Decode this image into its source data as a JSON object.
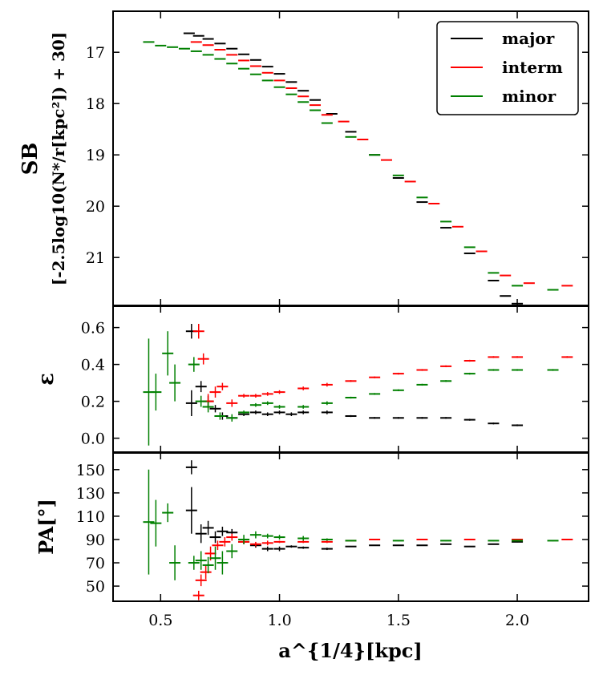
{
  "chart_data": {
    "type": "scatter",
    "x_label": "a^{1/4}[kpc]",
    "x_lim": [
      0.3,
      2.3
    ],
    "x_ticks": [
      "0.5",
      "1.0",
      "1.5",
      "2.0"
    ],
    "colors": {
      "major": "#000000",
      "interm": "#ff0000",
      "minor": "#008000"
    },
    "legend": {
      "placement": "top-right",
      "entries": [
        "major",
        "interm",
        "minor"
      ]
    },
    "panels": [
      {
        "name": "sb",
        "y_label_top": "SB",
        "y_label_bottom": "[-2.5log10(N*/r[kpc²]) + 30]",
        "y_lim": [
          21.95,
          16.2
        ],
        "y_inverted": true,
        "y_ticks": [
          "17",
          "18",
          "19",
          "20",
          "21"
        ],
        "series": [
          {
            "name": "major",
            "points": [
              [
                0.62,
                16.63
              ],
              [
                0.66,
                16.68
              ],
              [
                0.7,
                16.74
              ],
              [
                0.75,
                16.83
              ],
              [
                0.8,
                16.93
              ],
              [
                0.85,
                17.04
              ],
              [
                0.9,
                17.15
              ],
              [
                0.95,
                17.28
              ],
              [
                1.0,
                17.42
              ],
              [
                1.05,
                17.58
              ],
              [
                1.1,
                17.75
              ],
              [
                1.15,
                17.93
              ],
              [
                1.22,
                18.2
              ],
              [
                1.3,
                18.55
              ],
              [
                1.4,
                19.0
              ],
              [
                1.5,
                19.45
              ],
              [
                1.6,
                19.92
              ],
              [
                1.7,
                20.42
              ],
              [
                1.8,
                20.92
              ],
              [
                1.9,
                21.45
              ],
              [
                1.95,
                21.75
              ],
              [
                2.0,
                21.9
              ]
            ]
          },
          {
            "name": "interm",
            "points": [
              [
                0.65,
                16.8
              ],
              [
                0.7,
                16.86
              ],
              [
                0.75,
                16.95
              ],
              [
                0.8,
                17.05
              ],
              [
                0.85,
                17.16
              ],
              [
                0.9,
                17.27
              ],
              [
                0.95,
                17.4
              ],
              [
                1.0,
                17.55
              ],
              [
                1.05,
                17.7
              ],
              [
                1.1,
                17.86
              ],
              [
                1.15,
                18.03
              ],
              [
                1.2,
                18.22
              ],
              [
                1.27,
                18.35
              ],
              [
                1.35,
                18.7
              ],
              [
                1.45,
                19.1
              ],
              [
                1.55,
                19.52
              ],
              [
                1.65,
                19.95
              ],
              [
                1.75,
                20.4
              ],
              [
                1.85,
                20.88
              ],
              [
                1.95,
                21.35
              ],
              [
                2.05,
                21.5
              ],
              [
                2.21,
                21.55
              ]
            ]
          },
          {
            "name": "minor",
            "points": [
              [
                0.45,
                16.8
              ],
              [
                0.5,
                16.87
              ],
              [
                0.55,
                16.9
              ],
              [
                0.6,
                16.93
              ],
              [
                0.65,
                16.98
              ],
              [
                0.7,
                17.05
              ],
              [
                0.75,
                17.13
              ],
              [
                0.8,
                17.22
              ],
              [
                0.85,
                17.32
              ],
              [
                0.9,
                17.43
              ],
              [
                0.95,
                17.55
              ],
              [
                1.0,
                17.68
              ],
              [
                1.05,
                17.82
              ],
              [
                1.1,
                17.97
              ],
              [
                1.15,
                18.13
              ],
              [
                1.2,
                18.38
              ],
              [
                1.3,
                18.65
              ],
              [
                1.4,
                19.0
              ],
              [
                1.5,
                19.4
              ],
              [
                1.6,
                19.83
              ],
              [
                1.7,
                20.3
              ],
              [
                1.8,
                20.8
              ],
              [
                1.9,
                21.3
              ],
              [
                2.0,
                21.55
              ],
              [
                2.15,
                21.63
              ]
            ]
          }
        ]
      },
      {
        "name": "epsilon",
        "y_label": "ε",
        "y_lim": [
          -0.08,
          0.72
        ],
        "y_ticks": [
          "0.0",
          "0.2",
          "0.4",
          "0.6"
        ],
        "series": [
          {
            "name": "major",
            "points": [
              [
                0.63,
                0.58,
                0.04
              ],
              [
                0.63,
                0.19,
                0.07
              ],
              [
                0.67,
                0.28,
                0.03
              ],
              [
                0.7,
                0.2,
                0.03
              ],
              [
                0.73,
                0.16,
                0.02
              ],
              [
                0.76,
                0.12,
                0.02
              ],
              [
                0.8,
                0.11,
                0.01
              ],
              [
                0.85,
                0.13,
                0.01
              ],
              [
                0.9,
                0.14,
                0.01
              ],
              [
                0.95,
                0.13,
                0.01
              ],
              [
                1.0,
                0.14,
                0.01
              ],
              [
                1.05,
                0.13,
                0.01
              ],
              [
                1.1,
                0.14,
                0.01
              ],
              [
                1.2,
                0.14,
                0.01
              ],
              [
                1.3,
                0.12,
                0.005
              ],
              [
                1.4,
                0.11,
                0.005
              ],
              [
                1.5,
                0.11,
                0.005
              ],
              [
                1.6,
                0.11,
                0.005
              ],
              [
                1.7,
                0.11,
                0.005
              ],
              [
                1.8,
                0.1,
                0.005
              ],
              [
                1.9,
                0.08,
                0.005
              ],
              [
                2.0,
                0.07,
                0.005
              ]
            ]
          },
          {
            "name": "interm",
            "points": [
              [
                0.66,
                0.58,
                0.04
              ],
              [
                0.68,
                0.43,
                0.03
              ],
              [
                0.7,
                0.2,
                0.04
              ],
              [
                0.73,
                0.25,
                0.03
              ],
              [
                0.76,
                0.28,
                0.02
              ],
              [
                0.8,
                0.19,
                0.02
              ],
              [
                0.85,
                0.23,
                0.01
              ],
              [
                0.9,
                0.23,
                0.01
              ],
              [
                0.95,
                0.24,
                0.01
              ],
              [
                1.0,
                0.25,
                0.01
              ],
              [
                1.1,
                0.27,
                0.01
              ],
              [
                1.2,
                0.29,
                0.01
              ],
              [
                1.3,
                0.31,
                0.005
              ],
              [
                1.4,
                0.33,
                0.005
              ],
              [
                1.5,
                0.35,
                0.005
              ],
              [
                1.6,
                0.37,
                0.005
              ],
              [
                1.7,
                0.39,
                0.005
              ],
              [
                1.8,
                0.42,
                0.005
              ],
              [
                1.9,
                0.44,
                0.005
              ],
              [
                2.0,
                0.44,
                0.005
              ],
              [
                2.21,
                0.44,
                0.005
              ]
            ]
          },
          {
            "name": "minor",
            "points": [
              [
                0.45,
                0.25,
                0.29
              ],
              [
                0.48,
                0.25,
                0.1
              ],
              [
                0.53,
                0.46,
                0.12
              ],
              [
                0.56,
                0.3,
                0.1
              ],
              [
                0.64,
                0.4,
                0.04
              ],
              [
                0.67,
                0.2,
                0.03
              ],
              [
                0.7,
                0.17,
                0.03
              ],
              [
                0.75,
                0.12,
                0.02
              ],
              [
                0.8,
                0.11,
                0.02
              ],
              [
                0.85,
                0.14,
                0.01
              ],
              [
                0.9,
                0.18,
                0.01
              ],
              [
                0.95,
                0.19,
                0.01
              ],
              [
                1.0,
                0.17,
                0.01
              ],
              [
                1.1,
                0.17,
                0.01
              ],
              [
                1.2,
                0.19,
                0.01
              ],
              [
                1.3,
                0.22,
                0.005
              ],
              [
                1.4,
                0.24,
                0.005
              ],
              [
                1.5,
                0.26,
                0.005
              ],
              [
                1.6,
                0.29,
                0.005
              ],
              [
                1.7,
                0.31,
                0.005
              ],
              [
                1.8,
                0.35,
                0.005
              ],
              [
                1.9,
                0.37,
                0.005
              ],
              [
                2.0,
                0.37,
                0.005
              ],
              [
                2.15,
                0.37,
                0.005
              ]
            ]
          }
        ]
      },
      {
        "name": "pa",
        "y_label": "PA[°]",
        "y_lim": [
          37,
          165
        ],
        "y_ticks": [
          "50",
          "70",
          "90",
          "110",
          "130",
          "150"
        ],
        "series": [
          {
            "name": "major",
            "points": [
              [
                0.63,
                152,
                6
              ],
              [
                0.63,
                115,
                20
              ],
              [
                0.67,
                95,
                8
              ],
              [
                0.7,
                100,
                6
              ],
              [
                0.73,
                92,
                5
              ],
              [
                0.76,
                97,
                4
              ],
              [
                0.8,
                96,
                3
              ],
              [
                0.85,
                88,
                2
              ],
              [
                0.9,
                85,
                2
              ],
              [
                0.95,
                82,
                2
              ],
              [
                1.0,
                82,
                2
              ],
              [
                1.05,
                84,
                1
              ],
              [
                1.1,
                83,
                1
              ],
              [
                1.2,
                82,
                1
              ],
              [
                1.3,
                84,
                0.5
              ],
              [
                1.4,
                85,
                0.5
              ],
              [
                1.5,
                85,
                0.5
              ],
              [
                1.6,
                85,
                0.5
              ],
              [
                1.7,
                86,
                0.5
              ],
              [
                1.8,
                84,
                0.5
              ],
              [
                1.9,
                86,
                0.5
              ],
              [
                2.0,
                88,
                0.5
              ]
            ]
          },
          {
            "name": "interm",
            "points": [
              [
                0.66,
                42,
                4
              ],
              [
                0.67,
                55,
                5
              ],
              [
                0.69,
                62,
                6
              ],
              [
                0.71,
                78,
                6
              ],
              [
                0.74,
                85,
                4
              ],
              [
                0.77,
                88,
                4
              ],
              [
                0.8,
                92,
                3
              ],
              [
                0.85,
                88,
                2
              ],
              [
                0.9,
                86,
                2
              ],
              [
                0.95,
                87,
                2
              ],
              [
                1.0,
                88,
                1
              ],
              [
                1.1,
                88,
                1
              ],
              [
                1.2,
                88,
                1
              ],
              [
                1.3,
                89,
                0.5
              ],
              [
                1.4,
                90,
                0.5
              ],
              [
                1.6,
                90,
                0.5
              ],
              [
                1.8,
                90,
                0.5
              ],
              [
                2.0,
                90,
                0.5
              ],
              [
                2.21,
                90,
                0.5
              ]
            ]
          },
          {
            "name": "minor",
            "points": [
              [
                0.45,
                105,
                45
              ],
              [
                0.48,
                104,
                20
              ],
              [
                0.53,
                113,
                8
              ],
              [
                0.56,
                70,
                15
              ],
              [
                0.64,
                70,
                6
              ],
              [
                0.67,
                72,
                8
              ],
              [
                0.7,
                68,
                7
              ],
              [
                0.73,
                74,
                10
              ],
              [
                0.76,
                70,
                10
              ],
              [
                0.8,
                80,
                6
              ],
              [
                0.85,
                90,
                4
              ],
              [
                0.9,
                94,
                3
              ],
              [
                0.95,
                93,
                2
              ],
              [
                1.0,
                92,
                2
              ],
              [
                1.1,
                91,
                2
              ],
              [
                1.2,
                90,
                1
              ],
              [
                1.3,
                89,
                0.5
              ],
              [
                1.5,
                89,
                0.5
              ],
              [
                1.7,
                89,
                0.5
              ],
              [
                1.9,
                89,
                0.5
              ],
              [
                2.0,
                89,
                0.5
              ],
              [
                2.15,
                89,
                0.5
              ]
            ]
          }
        ]
      }
    ]
  }
}
